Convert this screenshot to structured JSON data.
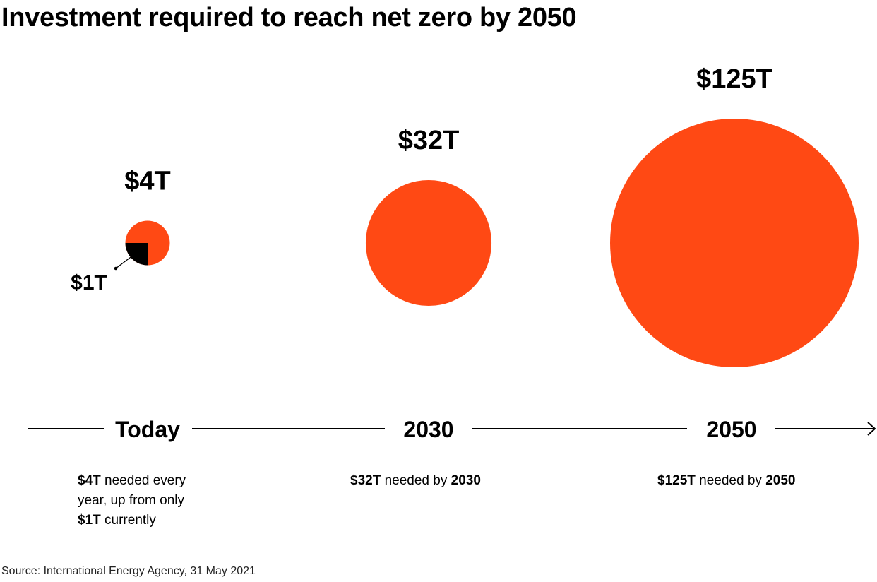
{
  "title": "Investment required to reach net zero by 2050",
  "source": "Source: International Energy Agency, 31 May 2021",
  "colors": {
    "accent": "#FF4914",
    "current": "#000000",
    "text": "#000000"
  },
  "chart_data": {
    "type": "bubble",
    "title": "Investment required to reach net zero by 2050",
    "unit": "trillion USD",
    "timeline": [
      "Today",
      "2030",
      "2050"
    ],
    "bubbles": [
      {
        "period": "Today",
        "value": 4,
        "label": "$4T",
        "current_value": 1,
        "current_label": "$1T"
      },
      {
        "period": "2030",
        "value": 32,
        "label": "$32T"
      },
      {
        "period": "2050",
        "value": 125,
        "label": "$125T"
      }
    ]
  },
  "descriptions": {
    "today": {
      "b1": "$4T",
      "t1": " needed every",
      "t2": "year, up from only",
      "b2": "$1T",
      "t3": " currently"
    },
    "y2030": {
      "b1": "$32T",
      "t1": " needed by ",
      "b2": "2030"
    },
    "y2050": {
      "b1": "$125T",
      "t1": " needed by ",
      "b2": "2050"
    }
  }
}
